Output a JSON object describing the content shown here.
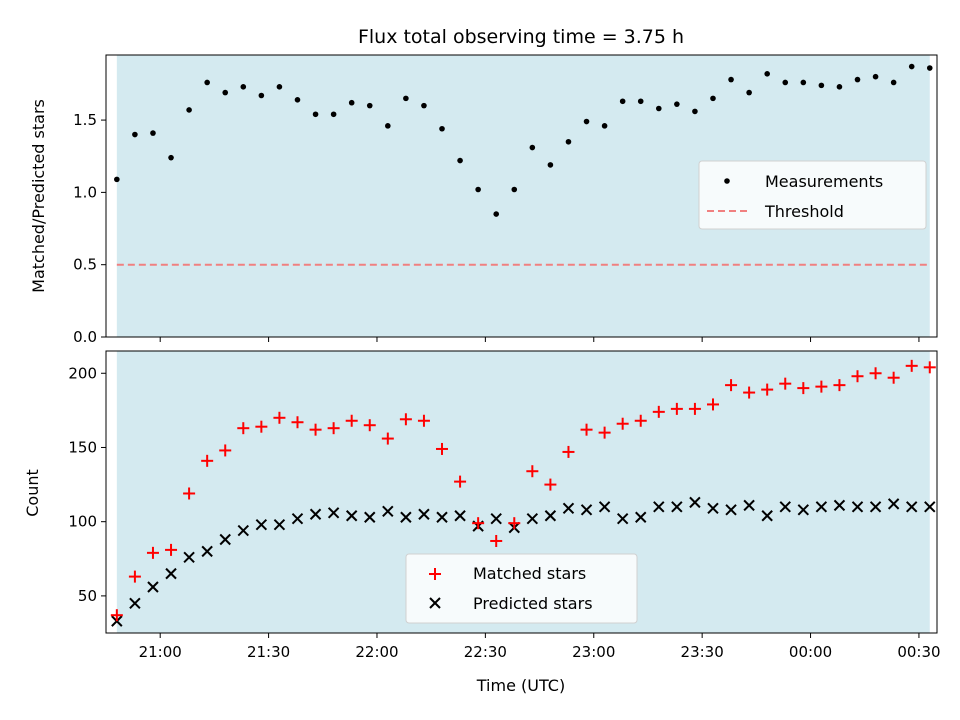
{
  "title": "Flux total observing time = 3.75 h",
  "xlabel": "Time (UTC)",
  "x_ticks": [
    "21:00",
    "21:30",
    "22:00",
    "22:30",
    "23:00",
    "23:30",
    "00:00",
    "00:30"
  ],
  "colors": {
    "span": "#d4eaf0",
    "threshold": "#f08080",
    "measurement": "#000000",
    "matched": "#ff0000",
    "predicted": "#000000"
  },
  "chart_data": [
    {
      "type": "scatter",
      "panel": "top",
      "ylabel": "Matched/Predicted stars",
      "ylim": [
        0,
        1.95
      ],
      "y_ticks": [
        "0.0",
        "0.5",
        "1.0",
        "1.5"
      ],
      "x_range_hours": [
        "20:45",
        "00:35"
      ],
      "shaded_span": [
        "20:48",
        "00:33"
      ],
      "threshold": 0.5,
      "legend_position": "center-right",
      "legend": [
        "Measurements",
        "Threshold"
      ],
      "series": [
        {
          "name": "Measurements",
          "x": [
            "20:48",
            "20:53",
            "20:58",
            "21:03",
            "21:08",
            "21:13",
            "21:18",
            "21:23",
            "21:28",
            "21:33",
            "21:38",
            "21:43",
            "21:48",
            "21:53",
            "21:58",
            "22:03",
            "22:08",
            "22:13",
            "22:18",
            "22:23",
            "22:28",
            "22:33",
            "22:38",
            "22:43",
            "22:48",
            "22:53",
            "22:58",
            "23:03",
            "23:08",
            "23:13",
            "23:18",
            "23:23",
            "23:28",
            "23:33",
            "23:38",
            "23:43",
            "23:48",
            "23:53",
            "23:58",
            "00:03",
            "00:08",
            "00:13",
            "00:18",
            "00:23",
            "00:28",
            "00:33"
          ],
          "values": [
            1.09,
            1.4,
            1.41,
            1.24,
            1.57,
            1.76,
            1.69,
            1.73,
            1.67,
            1.73,
            1.64,
            1.54,
            1.54,
            1.62,
            1.6,
            1.46,
            1.65,
            1.6,
            1.44,
            1.22,
            1.02,
            0.85,
            1.02,
            1.31,
            1.19,
            1.35,
            1.49,
            1.46,
            1.63,
            1.63,
            1.58,
            1.61,
            1.56,
            1.65,
            1.78,
            1.69,
            1.82,
            1.76,
            1.76,
            1.74,
            1.73,
            1.78,
            1.8,
            1.76,
            1.87,
            1.86
          ]
        }
      ]
    },
    {
      "type": "scatter",
      "panel": "bottom",
      "ylabel": "Count",
      "ylim": [
        25,
        215
      ],
      "y_ticks": [
        "50",
        "100",
        "150",
        "200"
      ],
      "legend_position": "lower-center",
      "legend": [
        "Matched stars",
        "Predicted stars"
      ],
      "series": [
        {
          "name": "Matched stars",
          "marker": "+",
          "x": [
            "20:48",
            "20:53",
            "20:58",
            "21:03",
            "21:08",
            "21:13",
            "21:18",
            "21:23",
            "21:28",
            "21:33",
            "21:38",
            "21:43",
            "21:48",
            "21:53",
            "21:58",
            "22:03",
            "22:08",
            "22:13",
            "22:18",
            "22:23",
            "22:28",
            "22:33",
            "22:38",
            "22:43",
            "22:48",
            "22:53",
            "22:58",
            "23:03",
            "23:08",
            "23:13",
            "23:18",
            "23:23",
            "23:28",
            "23:33",
            "23:38",
            "23:43",
            "23:48",
            "23:53",
            "23:58",
            "00:03",
            "00:08",
            "00:13",
            "00:18",
            "00:23",
            "00:28",
            "00:33"
          ],
          "values": [
            37,
            63,
            79,
            81,
            119,
            141,
            148,
            163,
            164,
            170,
            167,
            162,
            163,
            168,
            165,
            156,
            169,
            168,
            149,
            127,
            99,
            87,
            99,
            134,
            125,
            147,
            162,
            160,
            166,
            168,
            174,
            176,
            176,
            179,
            192,
            187,
            189,
            193,
            190,
            191,
            192,
            198,
            200,
            197,
            205,
            204
          ]
        },
        {
          "name": "Predicted stars",
          "marker": "x",
          "x": [
            "20:48",
            "20:53",
            "20:58",
            "21:03",
            "21:08",
            "21:13",
            "21:18",
            "21:23",
            "21:28",
            "21:33",
            "21:38",
            "21:43",
            "21:48",
            "21:53",
            "21:58",
            "22:03",
            "22:08",
            "22:13",
            "22:18",
            "22:23",
            "22:28",
            "22:33",
            "22:38",
            "22:43",
            "22:48",
            "22:53",
            "22:58",
            "23:03",
            "23:08",
            "23:13",
            "23:18",
            "23:23",
            "23:28",
            "23:33",
            "23:38",
            "23:43",
            "23:48",
            "23:53",
            "23:58",
            "00:03",
            "00:08",
            "00:13",
            "00:18",
            "00:23",
            "00:28",
            "00:33"
          ],
          "values": [
            33,
            45,
            56,
            65,
            76,
            80,
            88,
            94,
            98,
            98,
            102,
            105,
            106,
            104,
            103,
            107,
            103,
            105,
            103,
            104,
            97,
            102,
            96,
            102,
            104,
            109,
            108,
            110,
            102,
            103,
            110,
            110,
            113,
            109,
            108,
            111,
            104,
            110,
            108,
            110,
            111,
            110,
            110,
            112,
            110,
            110
          ]
        }
      ]
    }
  ]
}
